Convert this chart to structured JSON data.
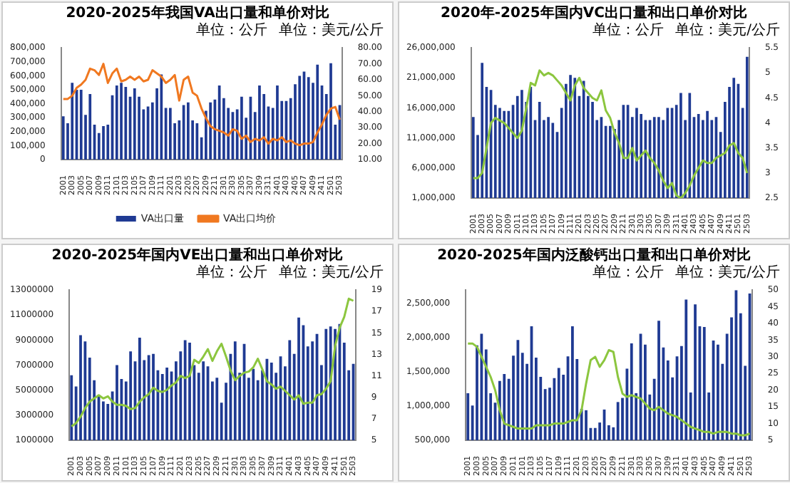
{
  "chart_data": [
    {
      "type": "bar",
      "title": "2020-2025年我国VA出口量和单价对比",
      "annotations": [
        "单位：公斤",
        "单位：美元/公斤"
      ],
      "legend": "bottom",
      "categories": [
        "2001",
        null,
        "2003",
        null,
        "2005",
        null,
        "2007",
        null,
        "2009",
        null,
        "2011",
        null,
        "2101",
        null,
        "2103",
        null,
        "2105",
        null,
        "2107",
        null,
        "2109",
        null,
        "2111",
        null,
        "2201",
        null,
        "2203",
        null,
        "2205",
        null,
        "2207",
        null,
        "2209",
        null,
        "2211",
        null,
        "2301",
        null,
        "2303",
        null,
        "2305",
        null,
        "2307",
        null,
        "2309",
        null,
        "2311",
        null,
        "2401",
        null,
        "2403",
        null,
        "2405",
        null,
        "2407",
        null,
        "2409",
        null,
        "2411",
        null,
        "2501",
        null,
        "2503"
      ],
      "series": [
        {
          "name": "VA出口量",
          "color": "#1f3a93",
          "values": [
            310000,
            260000,
            550000,
            500000,
            500000,
            320000,
            470000,
            250000,
            190000,
            240000,
            250000,
            460000,
            530000,
            550000,
            520000,
            450000,
            510000,
            450000,
            360000,
            380000,
            410000,
            510000,
            610000,
            370000,
            370000,
            260000,
            280000,
            390000,
            410000,
            280000,
            260000,
            160000,
            350000,
            410000,
            430000,
            530000,
            440000,
            370000,
            340000,
            360000,
            450000,
            300000,
            450000,
            340000,
            530000,
            470000,
            380000,
            370000,
            530000,
            420000,
            420000,
            440000,
            540000,
            600000,
            630000,
            590000,
            550000,
            680000,
            530000,
            470000,
            690000,
            250000,
            390000
          ]
        },
        {
          "type": "line",
          "name": "VA出口均价",
          "axis": "y2",
          "color": "#f07820",
          "values": [
            48,
            48,
            50,
            55,
            57,
            60,
            67,
            66,
            63,
            70,
            58,
            64,
            67,
            59,
            60,
            62,
            60,
            62,
            59,
            60,
            66,
            64,
            62,
            58,
            60,
            63,
            47,
            60,
            62,
            52,
            50,
            42,
            36,
            31,
            29,
            28,
            27,
            25,
            29,
            28,
            23,
            25,
            21,
            23,
            22,
            24,
            20,
            23,
            22,
            24,
            21,
            22,
            20,
            19,
            20,
            20,
            21,
            27,
            32,
            38,
            42,
            43,
            35
          ]
        }
      ],
      "ylim": [
        0,
        800000
      ],
      "yticks": [
        0,
        {
          "value": 100000,
          "label": "100,000"
        },
        {
          "value": 200000,
          "label": "200,000"
        },
        {
          "value": 300000,
          "label": "300,000"
        },
        {
          "value": 400000,
          "label": "400,000"
        },
        {
          "value": 500000,
          "label": "500,000"
        },
        {
          "value": 600000,
          "label": "600,000"
        },
        {
          "value": 700000,
          "label": "700,000"
        },
        {
          "value": 800000,
          "label": "800,000"
        }
      ],
      "y2lim": [
        10,
        80
      ],
      "y2ticks": [
        {
          "value": 10,
          "label": "10.00"
        },
        {
          "value": 20,
          "label": "20.00"
        },
        {
          "value": 30,
          "label": "30.00"
        },
        {
          "value": 40,
          "label": "40.00"
        },
        {
          "value": 50,
          "label": "50.00"
        },
        {
          "value": 60,
          "label": "60.00"
        },
        {
          "value": 70,
          "label": "70.00"
        },
        {
          "value": 80,
          "label": "80.00"
        }
      ]
    },
    {
      "type": "bar",
      "title": "2020年-2025年国内VC出口量和出口单价对比",
      "annotations": [
        "单位：公斤",
        "单位：美元/公斤"
      ],
      "categories": [
        "2001",
        null,
        "2003",
        null,
        "2005",
        null,
        "2007",
        null,
        "2009",
        null,
        "2011",
        null,
        "2101",
        null,
        "2103",
        null,
        "2105",
        null,
        "2107",
        null,
        "2109",
        null,
        "2111",
        null,
        "2201",
        null,
        "2203",
        null,
        "2205",
        null,
        "2207",
        null,
        "2209",
        null,
        "2211",
        null,
        "2301",
        null,
        "2303",
        null,
        "2305",
        null,
        "2307",
        null,
        "2309",
        null,
        "2311",
        null,
        "2401",
        null,
        "2403",
        null,
        "2405",
        null,
        "2407",
        null,
        "2409",
        null,
        "2411",
        null,
        "2501",
        null,
        "2503"
      ],
      "series": [
        {
          "color": "#1f3a93",
          "values": [
            14500000,
            11500000,
            23500000,
            19500000,
            19000000,
            16500000,
            16000000,
            15500000,
            15500000,
            16500000,
            18000000,
            19000000,
            17000000,
            19500000,
            14000000,
            17000000,
            14000000,
            14500000,
            13500000,
            12000000,
            16000000,
            20000000,
            21500000,
            21000000,
            18000000,
            20500000,
            18000000,
            17000000,
            14000000,
            14500000,
            13000000,
            13000000,
            12500000,
            14000000,
            16500000,
            16500000,
            14500000,
            16000000,
            15000000,
            14000000,
            14000000,
            14500000,
            14500000,
            14000000,
            16000000,
            16000000,
            16500000,
            18500000,
            14000000,
            18500000,
            14500000,
            15000000,
            14000000,
            15500000,
            14000000,
            14500000,
            12000000,
            17000000,
            19500000,
            21000000,
            20000000,
            16000000,
            24500000
          ]
        },
        {
          "type": "line",
          "axis": "y2",
          "color": "#8cc63f",
          "values": [
            2.9,
            2.9,
            3.0,
            3.5,
            4.0,
            4.1,
            4.05,
            4.0,
            3.9,
            3.8,
            3.7,
            3.85,
            4.3,
            4.8,
            4.75,
            5.05,
            4.95,
            5.0,
            4.95,
            4.85,
            4.75,
            4.6,
            4.45,
            4.75,
            4.9,
            4.7,
            4.6,
            4.5,
            4.45,
            4.65,
            4.25,
            4.1,
            3.8,
            3.6,
            3.3,
            3.3,
            3.5,
            3.25,
            3.35,
            3.45,
            3.3,
            3.2,
            3.05,
            2.85,
            2.7,
            2.8,
            2.55,
            2.5,
            2.6,
            2.75,
            2.95,
            3.1,
            3.25,
            3.2,
            3.2,
            3.3,
            3.35,
            3.4,
            3.55,
            3.6,
            3.4,
            3.3,
            3.0
          ]
        }
      ],
      "ylim": [
        1000000,
        26000000
      ],
      "yticks": [
        {
          "value": 1000000,
          "label": "1,000,000"
        },
        {
          "value": 6000000,
          "label": "6,000,000"
        },
        {
          "value": 11000000,
          "label": "11,000,000"
        },
        {
          "value": 16000000,
          "label": "16,000,000"
        },
        {
          "value": 21000000,
          "label": "21,000,000"
        },
        {
          "value": 26000000,
          "label": "26,000,000"
        }
      ],
      "y2lim": [
        2.5,
        5.5
      ],
      "y2ticks": [
        2.5,
        3,
        3.5,
        4,
        4.5,
        5,
        5.5
      ]
    },
    {
      "type": "bar",
      "title": "2020-2025年国内VE出口量和出口单价对比",
      "annotations": [
        "单位：公斤",
        "单位：美元/公斤"
      ],
      "categories": [
        "2001",
        null,
        "2003",
        null,
        "2005",
        null,
        "2007",
        null,
        "2009",
        null,
        "2011",
        null,
        "2101",
        null,
        "2103",
        null,
        "2105",
        null,
        "2107",
        null,
        "2109",
        null,
        "2111",
        null,
        "2201",
        null,
        "2203",
        null,
        "2205",
        null,
        "2207",
        null,
        "2209",
        null,
        "2211",
        null,
        "2301",
        null,
        "2303",
        null,
        "2305",
        null,
        "2307",
        null,
        "2309",
        null,
        "2311",
        null,
        "2401",
        null,
        "2403",
        null,
        "2405",
        null,
        "2407",
        null,
        "2409",
        null,
        "2411",
        null,
        "2501",
        null,
        "2503"
      ],
      "series": [
        {
          "color": "#1f3a93",
          "values": [
            6200000,
            5300000,
            9400000,
            8900000,
            7600000,
            5800000,
            4600000,
            4100000,
            3900000,
            4900000,
            7000000,
            5900000,
            5700000,
            8100000,
            7300000,
            9200000,
            7400000,
            7800000,
            7900000,
            6600000,
            6300000,
            6800000,
            6500000,
            7300000,
            8100000,
            9000000,
            8800000,
            7000000,
            6400000,
            7300000,
            6900000,
            5700000,
            6000000,
            4000000,
            5600000,
            7900000,
            8900000,
            6400000,
            8700000,
            6000000,
            6700000,
            5800000,
            6600000,
            7500000,
            7200000,
            6400000,
            7700000,
            6900000,
            9000000,
            7900000,
            10800000,
            10200000,
            8500000,
            8900000,
            9500000,
            7000000,
            9900000,
            10100000,
            9900000,
            10300000,
            8800000,
            6600000,
            7100000
          ]
        },
        {
          "type": "line",
          "axis": "y2",
          "color": "#8cc63f",
          "values": [
            6.3,
            6.6,
            7.2,
            8.0,
            8.6,
            8.9,
            9.2,
            8.9,
            9.1,
            8.6,
            8.3,
            8.3,
            8.2,
            7.9,
            8.0,
            8.6,
            9.0,
            9.3,
            9.9,
            9.6,
            9.5,
            9.7,
            10.1,
            10.4,
            11.0,
            10.8,
            11.0,
            12.5,
            12.2,
            12.8,
            13.5,
            12.4,
            13.3,
            14.0,
            12.8,
            11.5,
            10.6,
            11.0,
            11.3,
            11.4,
            11.8,
            12.6,
            11.6,
            10.5,
            10.2,
            9.8,
            10.0,
            9.6,
            9.2,
            8.8,
            9.2,
            8.4,
            8.5,
            8.5,
            9.2,
            9.3,
            9.8,
            10.5,
            13.8,
            15.5,
            16.5,
            18.2,
            18.0
          ]
        }
      ],
      "ylim": [
        1000000,
        13000000
      ],
      "yticks": [
        1000000,
        3000000,
        5000000,
        7000000,
        9000000,
        11000000,
        13000000
      ],
      "y2lim": [
        5,
        19
      ],
      "y2ticks": [
        5,
        7,
        9,
        11,
        13,
        15,
        17,
        19
      ]
    },
    {
      "type": "bar",
      "title": "2020-2025年国内泛酸钙出口量和出口单价对比",
      "annotations": [
        "单位：公斤",
        "单位：美元/公斤"
      ],
      "categories": [
        "2001",
        null,
        "2003",
        null,
        "2005",
        null,
        "2007",
        null,
        "2009",
        null,
        "2011",
        null,
        "2101",
        null,
        "2103",
        null,
        "2105",
        null,
        "2107",
        null,
        "2109",
        null,
        "2111",
        null,
        "2201",
        null,
        "2203",
        null,
        "2205",
        null,
        "2207",
        null,
        "2209",
        null,
        "2211",
        null,
        "2301",
        null,
        "2303",
        null,
        "2305",
        null,
        "2307",
        null,
        "2309",
        null,
        "2311",
        null,
        "2401",
        null,
        "2403",
        null,
        "2405",
        null,
        "2407",
        null,
        "2409",
        null,
        "2411",
        null,
        "2501",
        null,
        "2503"
      ],
      "series": [
        {
          "color": "#1f3a93",
          "values": [
            1190000,
            1010000,
            1890000,
            2060000,
            1830000,
            1190000,
            1050000,
            1370000,
            1470000,
            1400000,
            1740000,
            1970000,
            1780000,
            1620000,
            2170000,
            1710000,
            1430000,
            1250000,
            1270000,
            1410000,
            1560000,
            1460000,
            1730000,
            2170000,
            1690000,
            960000,
            940000,
            680000,
            680000,
            760000,
            950000,
            720000,
            690000,
            1060000,
            1120000,
            1550000,
            1920000,
            1190000,
            2060000,
            1900000,
            1170000,
            1400000,
            2250000,
            1860000,
            1670000,
            1420000,
            1730000,
            1880000,
            2560000,
            1200000,
            2490000,
            2170000,
            2160000,
            1200000,
            1960000,
            1900000,
            1620000,
            2060000,
            2300000,
            2700000,
            2360000,
            1590000,
            2650000
          ]
        },
        {
          "type": "line",
          "axis": "y2",
          "color": "#8cc63f",
          "values": [
            34,
            34,
            33,
            30,
            27,
            24,
            20,
            14,
            10,
            9.5,
            9,
            8.5,
            8.5,
            8.5,
            8.5,
            9.5,
            9.5,
            9.5,
            9.5,
            10,
            10,
            10,
            10.5,
            11,
            11,
            14,
            22,
            29,
            30,
            27,
            29,
            32,
            31.5,
            24,
            19,
            18,
            18.5,
            18,
            17.5,
            16,
            14.5,
            14,
            15,
            14,
            13,
            12.5,
            12,
            11,
            10,
            9,
            8.5,
            8,
            7.5,
            7.5,
            7,
            7.5,
            7.5,
            7.5,
            7,
            7,
            6.5,
            6.5,
            7
          ]
        }
      ],
      "ylim": [
        500000,
        2700000
      ],
      "yticks": [
        {
          "value": 500000,
          "label": "500,000"
        },
        {
          "value": 1000000,
          "label": "1,000,000"
        },
        {
          "value": 1500000,
          "label": "1,500,000"
        },
        {
          "value": 2000000,
          "label": "2,000,000"
        },
        {
          "value": 2500000,
          "label": "2,500,000"
        }
      ],
      "y2lim": [
        5,
        50
      ],
      "y2ticks": [
        5,
        10,
        15,
        20,
        25,
        30,
        35,
        40,
        45,
        50
      ]
    }
  ]
}
